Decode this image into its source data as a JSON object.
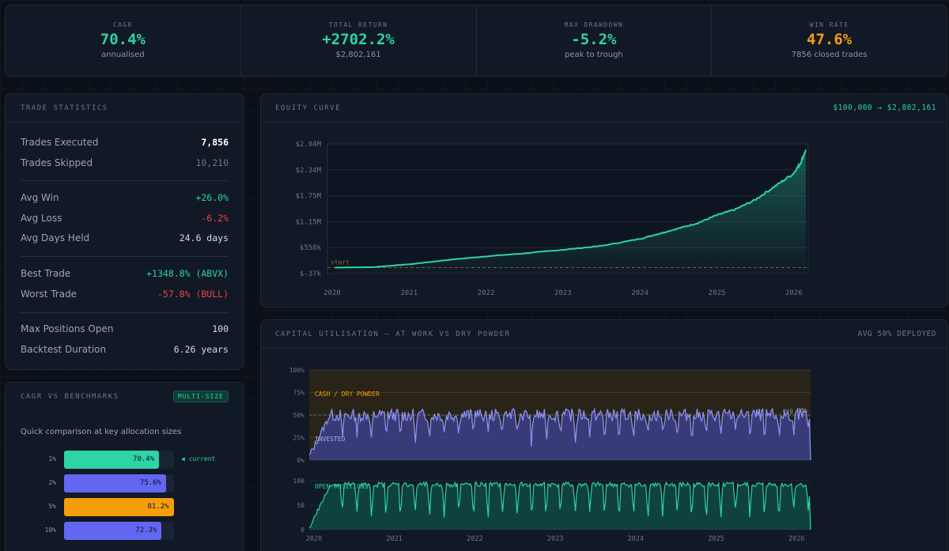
{
  "kpis": [
    {
      "label": "CAGR",
      "value": "70.4%",
      "sub": "annualised",
      "color": "#2dd4a5"
    },
    {
      "label": "TOTAL RETURN",
      "value": "+2702.2%",
      "sub": "$2,802,161",
      "color": "#2dd4a5"
    },
    {
      "label": "MAX DRAWDOWN",
      "value": "-5.2%",
      "sub": "peak to trough",
      "color": "#2dd4a5"
    },
    {
      "label": "WIN RATE",
      "value": "47.6%",
      "sub": "7856 closed trades",
      "color": "#f59e0b"
    }
  ],
  "trade_stats": {
    "title": "TRADE STATISTICS",
    "rows": [
      {
        "label": "Trades Executed",
        "value": "7,856",
        "color": "#ffffff"
      },
      {
        "label": "Trades Skipped",
        "value": "10,210",
        "color": "#6b7789"
      },
      {
        "label": "Avg Win",
        "value": "+26.0%",
        "color": "#2dd4a5"
      },
      {
        "label": "Avg Loss",
        "value": "-6.2%",
        "color": "#ef4444"
      },
      {
        "label": "Avg Days Held",
        "value": "24.6 days",
        "color": "#d6dde7"
      },
      {
        "label": "Best Trade",
        "value": "+1348.8% (ABVX)",
        "color": "#2dd4a5"
      },
      {
        "label": "Worst Trade",
        "value": "-57.8% (BULL)",
        "color": "#ef4444"
      },
      {
        "label": "Max Positions Open",
        "value": "100",
        "color": "#d6dde7"
      },
      {
        "label": "Backtest Duration",
        "value": "6.26 years",
        "color": "#d6dde7"
      }
    ]
  },
  "benchmarks": {
    "title": "CAGR VS BENCHMARKS",
    "badge": "MULTI-SIZE",
    "description": "Quick comparison at key allocation sizes",
    "current_note": "◀ current",
    "rows": [
      {
        "label": "1%",
        "value": 70.4,
        "display": "70.4%",
        "color": "#2dd4a5",
        "current": true
      },
      {
        "label": "2%",
        "value": 75.6,
        "display": "75.6%",
        "color": "#6366f1",
        "current": false
      },
      {
        "label": "5%",
        "value": 81.2,
        "display": "81.2%",
        "color": "#f59e0b",
        "current": false
      },
      {
        "label": "10%",
        "value": 72.3,
        "display": "72.3%",
        "color": "#6366f1",
        "current": false
      }
    ]
  },
  "equity": {
    "title": "EQUITY CURVE",
    "range_label": "$100,000 → $2,802,161",
    "start_label": "start",
    "y_ticks": [
      "$2.94M",
      "$2.34M",
      "$1.75M",
      "$1.15M",
      "$558k",
      "$-37k"
    ],
    "x_ticks": [
      "2020",
      "2021",
      "2022",
      "2023",
      "2024",
      "2025",
      "2026"
    ]
  },
  "capital": {
    "title": "CAPITAL UTILISATION — AT WORK VS DRY POWDER",
    "avg_label": "AVG 50% DEPLOYED",
    "cash_label": "CASH / DRY POWDER",
    "invested_label": "INVESTED",
    "avg_line_label": "avg 50%",
    "positions_label": "OPEN POSITIONS",
    "y_ticks_pct": [
      "100%",
      "75%",
      "50%",
      "25%",
      "0%"
    ],
    "y_ticks_pos": [
      "100",
      "50",
      "0"
    ],
    "x_ticks": [
      "2020",
      "2021",
      "2022",
      "2023",
      "2024",
      "2025",
      "2026"
    ]
  },
  "chart_data": [
    {
      "type": "area",
      "title": "EQUITY CURVE",
      "xlabel": "",
      "ylabel": "",
      "x": [
        2020.0,
        2020.5,
        2021.0,
        2021.5,
        2022.0,
        2022.5,
        2023.0,
        2023.5,
        2024.0,
        2024.25,
        2024.5,
        2024.75,
        2025.0,
        2025.25,
        2025.5,
        2025.75,
        2026.0,
        2026.1,
        2026.17
      ],
      "values": [
        100000,
        110000,
        180000,
        280000,
        360000,
        430000,
        510000,
        600000,
        760000,
        880000,
        1000000,
        1120000,
        1300000,
        1440000,
        1650000,
        1950000,
        2250000,
        2500000,
        2802161
      ],
      "ylim": [
        -37000,
        2940000
      ],
      "xlim": [
        2019.9,
        2026.2
      ]
    },
    {
      "type": "area",
      "title": "CAPITAL UTILISATION — AT WORK VS DRY POWDER",
      "series": [
        {
          "name": "INVESTED",
          "unit": "%",
          "ylim": [
            0,
            100
          ],
          "base": 50,
          "amp": 7,
          "dip_every": 0.18,
          "dip_depth": 30
        },
        {
          "name": "OPEN POSITIONS",
          "ylim": [
            0,
            100
          ],
          "base": 92,
          "amp": 5,
          "dip_every": 0.18,
          "dip_depth": 70
        }
      ],
      "xlim": [
        2020.0,
        2026.2
      ]
    }
  ]
}
